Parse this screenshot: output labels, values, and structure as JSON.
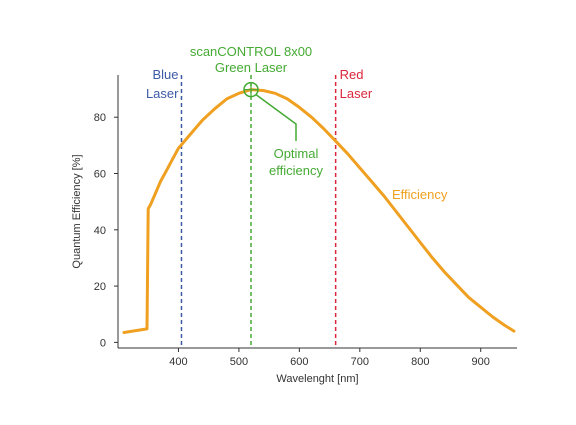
{
  "chart_data": {
    "type": "line",
    "title": "",
    "xlabel": "Wavelenght [nm]",
    "ylabel": "Quantum Efficiency [%]",
    "xlim": [
      300,
      960
    ],
    "ylim": [
      -2,
      95
    ],
    "xticks": [
      400,
      500,
      600,
      700,
      800,
      900
    ],
    "yticks": [
      0,
      20,
      40,
      60,
      80
    ],
    "grid": false,
    "colors": {
      "efficiency": "#f0a020",
      "blue": "#3c5aa6",
      "green": "#44aa33",
      "red": "#d9263a"
    },
    "series": [
      {
        "name": "Efficiency",
        "x": [
          310,
          348,
          350,
          354,
          360,
          370,
          380,
          390,
          400,
          420,
          440,
          460,
          480,
          500,
          520,
          540,
          560,
          580,
          600,
          620,
          640,
          660,
          680,
          700,
          720,
          740,
          760,
          780,
          800,
          820,
          840,
          860,
          880,
          900,
          920,
          940,
          955
        ],
        "values": [
          3.5,
          4.8,
          47.5,
          49,
          52,
          57,
          61,
          65,
          69,
          74,
          79,
          83,
          86.5,
          88.5,
          89.8,
          89.5,
          88.5,
          86.5,
          83.5,
          80,
          76,
          71.5,
          67,
          62,
          57,
          52,
          46.5,
          41,
          35.5,
          30,
          25,
          20.5,
          16,
          12.5,
          9,
          6,
          4
        ]
      }
    ],
    "lasers": [
      {
        "name": "Blue Laser",
        "label_lines": [
          "Blue",
          "Laser"
        ],
        "x": 405,
        "color": "#3c5aa6"
      },
      {
        "name": "scanCONTROL 8x00 Green Laser",
        "label_lines": [
          "scanCONTROL 8x00",
          "Green Laser"
        ],
        "x": 520,
        "color": "#44aa33"
      },
      {
        "name": "Red Laser",
        "label_lines": [
          "Red",
          "Laser"
        ],
        "x": 660,
        "color": "#d9263a"
      }
    ],
    "annotations": {
      "optimal": {
        "label_lines": [
          "Optimal",
          "efficiency"
        ],
        "x": 520,
        "y": 89.8
      },
      "series_label": "Efficiency"
    }
  }
}
